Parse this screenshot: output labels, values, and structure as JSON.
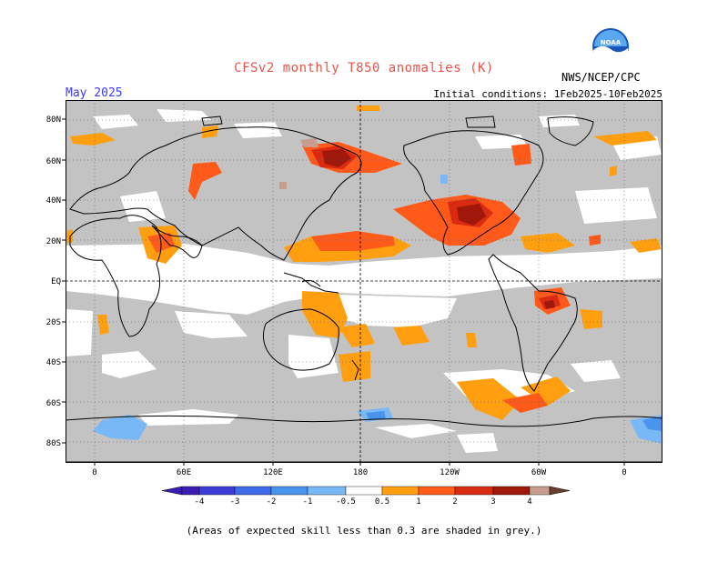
{
  "header": {
    "title": "CFSv2 monthly T850 anomalies (K)",
    "month": "May 2025",
    "initial_conditions": "Initial conditions: 1Feb2025-10Feb2025",
    "agency": "NWS/NCEP/CPC",
    "logo_text": "NOAA"
  },
  "map": {
    "lat_labels": [
      "80N",
      "60N",
      "40N",
      "20N",
      "EQ",
      "20S",
      "40S",
      "60S",
      "80S"
    ],
    "lon_labels": [
      "0",
      "60E",
      "120E",
      "180",
      "120W",
      "60W",
      "0"
    ],
    "colors": {
      "skill_mask_grey": "#c3c3c3",
      "ocean_land_base": "#ffffff",
      "coast": "#000000"
    }
  },
  "colorbar": {
    "tick_labels": [
      "-4",
      "-3",
      "-2",
      "-1",
      "-0.5",
      "0.5",
      "1",
      "2",
      "3",
      "4"
    ],
    "colors": [
      "#3a1eb4",
      "#3c3cd6",
      "#3f6ae8",
      "#4a94ee",
      "#79b8f7",
      "#ffffff",
      "#ff9f0f",
      "#ff5a1a",
      "#d92a12",
      "#a0170b",
      "#c79d8e",
      "#6b3f2f"
    ]
  },
  "footnote": "(Areas of expected skill less than 0.3 are shaded in grey.)"
}
